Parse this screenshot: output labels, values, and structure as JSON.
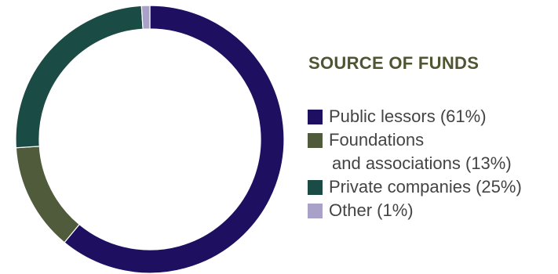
{
  "chart_data": {
    "type": "pie",
    "title": "SOURCE OF FUNDS",
    "categories": [
      "Public lessors",
      "Foundations and associations",
      "Private companies",
      "Other"
    ],
    "values": [
      61,
      13,
      25,
      1
    ],
    "colors": [
      "#1f0f61",
      "#4f5b3a",
      "#1b4b45",
      "#aaa1c8"
    ],
    "legend": [
      {
        "lines": [
          "Public lessors (61%)"
        ]
      },
      {
        "lines": [
          "Foundations",
          "and associations (13%)"
        ]
      },
      {
        "lines": [
          "Private companies (25%)"
        ]
      },
      {
        "lines": [
          "Other (1%)"
        ]
      }
    ],
    "legend_position": "right"
  }
}
